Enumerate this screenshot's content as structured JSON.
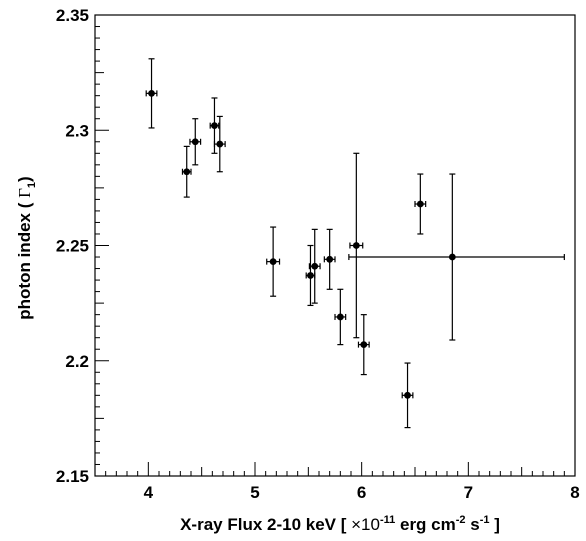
{
  "chart_data": {
    "type": "scatter",
    "xlim": [
      3.5,
      8.0
    ],
    "ylim": [
      2.15,
      2.35
    ],
    "x_ticks": [
      4,
      5,
      6,
      7,
      8
    ],
    "y_ticks": [
      2.15,
      2.2,
      2.25,
      2.3,
      2.35
    ],
    "x_tick_labels": [
      "4",
      "5",
      "6",
      "7",
      "8"
    ],
    "y_tick_labels": [
      "2.15",
      "2.2",
      "2.25",
      "2.3",
      "2.35"
    ],
    "xlabel": {
      "prefix": "X-ray Flux 2-10 keV [ ",
      "times": "×10",
      "exp1": "-11",
      "mid": " erg cm",
      "exp2": "-2",
      "mid2": " s",
      "exp3": "-1",
      "suffix": " ]"
    },
    "ylabel": {
      "prefix": "photon index ( ",
      "symbol": "Γ",
      "sub": "1",
      "suffix": ")"
    },
    "grid": false,
    "legend": "none",
    "points": [
      {
        "x": 4.03,
        "y": 2.316,
        "xerr": 0.05,
        "yerr": 0.015
      },
      {
        "x": 4.36,
        "y": 2.282,
        "xerr": 0.04,
        "yerr": 0.011
      },
      {
        "x": 4.44,
        "y": 2.295,
        "xerr": 0.05,
        "yerr": 0.01
      },
      {
        "x": 4.62,
        "y": 2.302,
        "xerr": 0.04,
        "yerr": 0.012
      },
      {
        "x": 4.67,
        "y": 2.294,
        "xerr": 0.05,
        "yerr": 0.012
      },
      {
        "x": 5.17,
        "y": 2.243,
        "xerr": 0.06,
        "yerr": 0.015
      },
      {
        "x": 5.52,
        "y": 2.237,
        "xerr": 0.04,
        "yerr": 0.013
      },
      {
        "x": 5.56,
        "y": 2.241,
        "xerr": 0.05,
        "yerr": 0.016
      },
      {
        "x": 5.7,
        "y": 2.244,
        "xerr": 0.05,
        "yerr": 0.013
      },
      {
        "x": 5.8,
        "y": 2.219,
        "xerr": 0.05,
        "yerr": 0.012
      },
      {
        "x": 5.95,
        "y": 2.25,
        "xerr": 0.06,
        "yerr": 0.04
      },
      {
        "x": 6.02,
        "y": 2.207,
        "xerr": 0.05,
        "yerr": 0.013
      },
      {
        "x": 6.43,
        "y": 2.185,
        "xerr": 0.05,
        "yerr": 0.014
      },
      {
        "x": 6.55,
        "y": 2.268,
        "xerr": 0.05,
        "yerr": 0.013
      },
      {
        "x": 6.85,
        "y": 2.245,
        "xerr_low": 0.97,
        "xerr_high": 1.05,
        "yerr": 0.036
      }
    ],
    "colors": {
      "marker": "#000000",
      "axis": "#000000"
    }
  }
}
